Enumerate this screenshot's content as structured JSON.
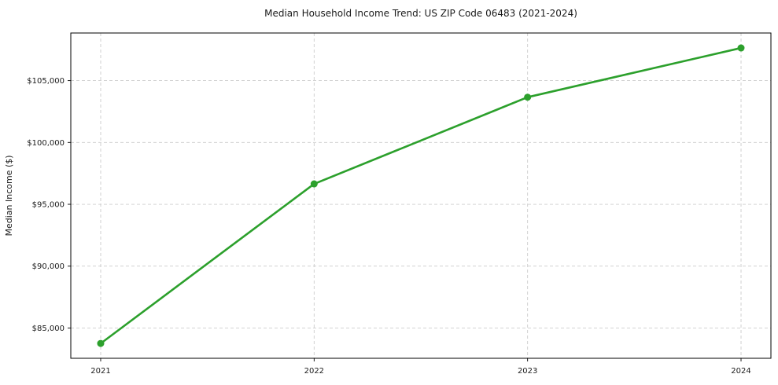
{
  "chart_data": {
    "type": "line",
    "title": "Median Household Income Trend: US ZIP Code 06483 (2021-2024)",
    "xlabel": "",
    "ylabel": "Median Income ($)",
    "x": [
      2021,
      2022,
      2023,
      2024
    ],
    "series": [
      {
        "name": "Median Household Income",
        "values": [
          83750,
          96650,
          103660,
          107640
        ]
      }
    ],
    "xticks": {
      "values": [
        2021,
        2022,
        2023,
        2024
      ],
      "labels": [
        "2021",
        "2022",
        "2023",
        "2024"
      ]
    },
    "yticks": {
      "values": [
        85000,
        90000,
        95000,
        100000,
        105000
      ],
      "labels": [
        "$85,000",
        "$90,000",
        "$95,000",
        "$100,000",
        "$105,000"
      ]
    },
    "xlim": [
      2020.86,
      2024.14
    ],
    "ylim": [
      82550,
      108850
    ],
    "grid": true,
    "legend": "none",
    "colors": {
      "line": "#2ca02c",
      "marker": "#2ca02c",
      "grid": "#cccccc",
      "spine": "#000000",
      "text": "#1a1a1a",
      "background": "#ffffff"
    }
  }
}
